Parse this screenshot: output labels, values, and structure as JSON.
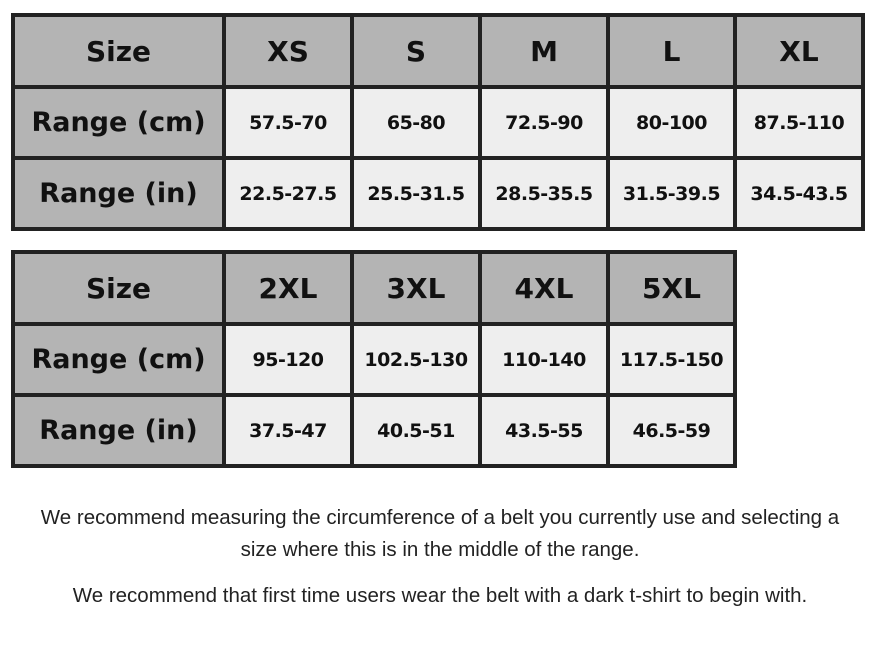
{
  "table1": {
    "header": [
      "Size",
      "XS",
      "S",
      "M",
      "L",
      "XL"
    ],
    "rows": [
      {
        "label": "Range (cm)",
        "values": [
          "57.5-70",
          "65-80",
          "72.5-90",
          "80-100",
          "87.5-110"
        ]
      },
      {
        "label": "Range (in)",
        "values": [
          "22.5-27.5",
          "25.5-31.5",
          "28.5-35.5",
          "31.5-39.5",
          "34.5-43.5"
        ]
      }
    ]
  },
  "table2": {
    "header": [
      "Size",
      "2XL",
      "3XL",
      "4XL",
      "5XL"
    ],
    "rows": [
      {
        "label": "Range (cm)",
        "values": [
          "95-120",
          "102.5-130",
          "110-140",
          "117.5-150"
        ]
      },
      {
        "label": "Range (in)",
        "values": [
          "37.5-47",
          "40.5-51",
          "43.5-55",
          "46.5-59"
        ]
      }
    ]
  },
  "notes": [
    "We recommend measuring the circumference of a belt you currently use and selecting a size where this is in the middle of the range.",
    "We recommend that first time users wear the belt with a dark t-shirt to begin with."
  ],
  "colors": {
    "header_bg": "#b4b4b4",
    "cell_bg": "#eeeeee",
    "border": "#222222"
  }
}
